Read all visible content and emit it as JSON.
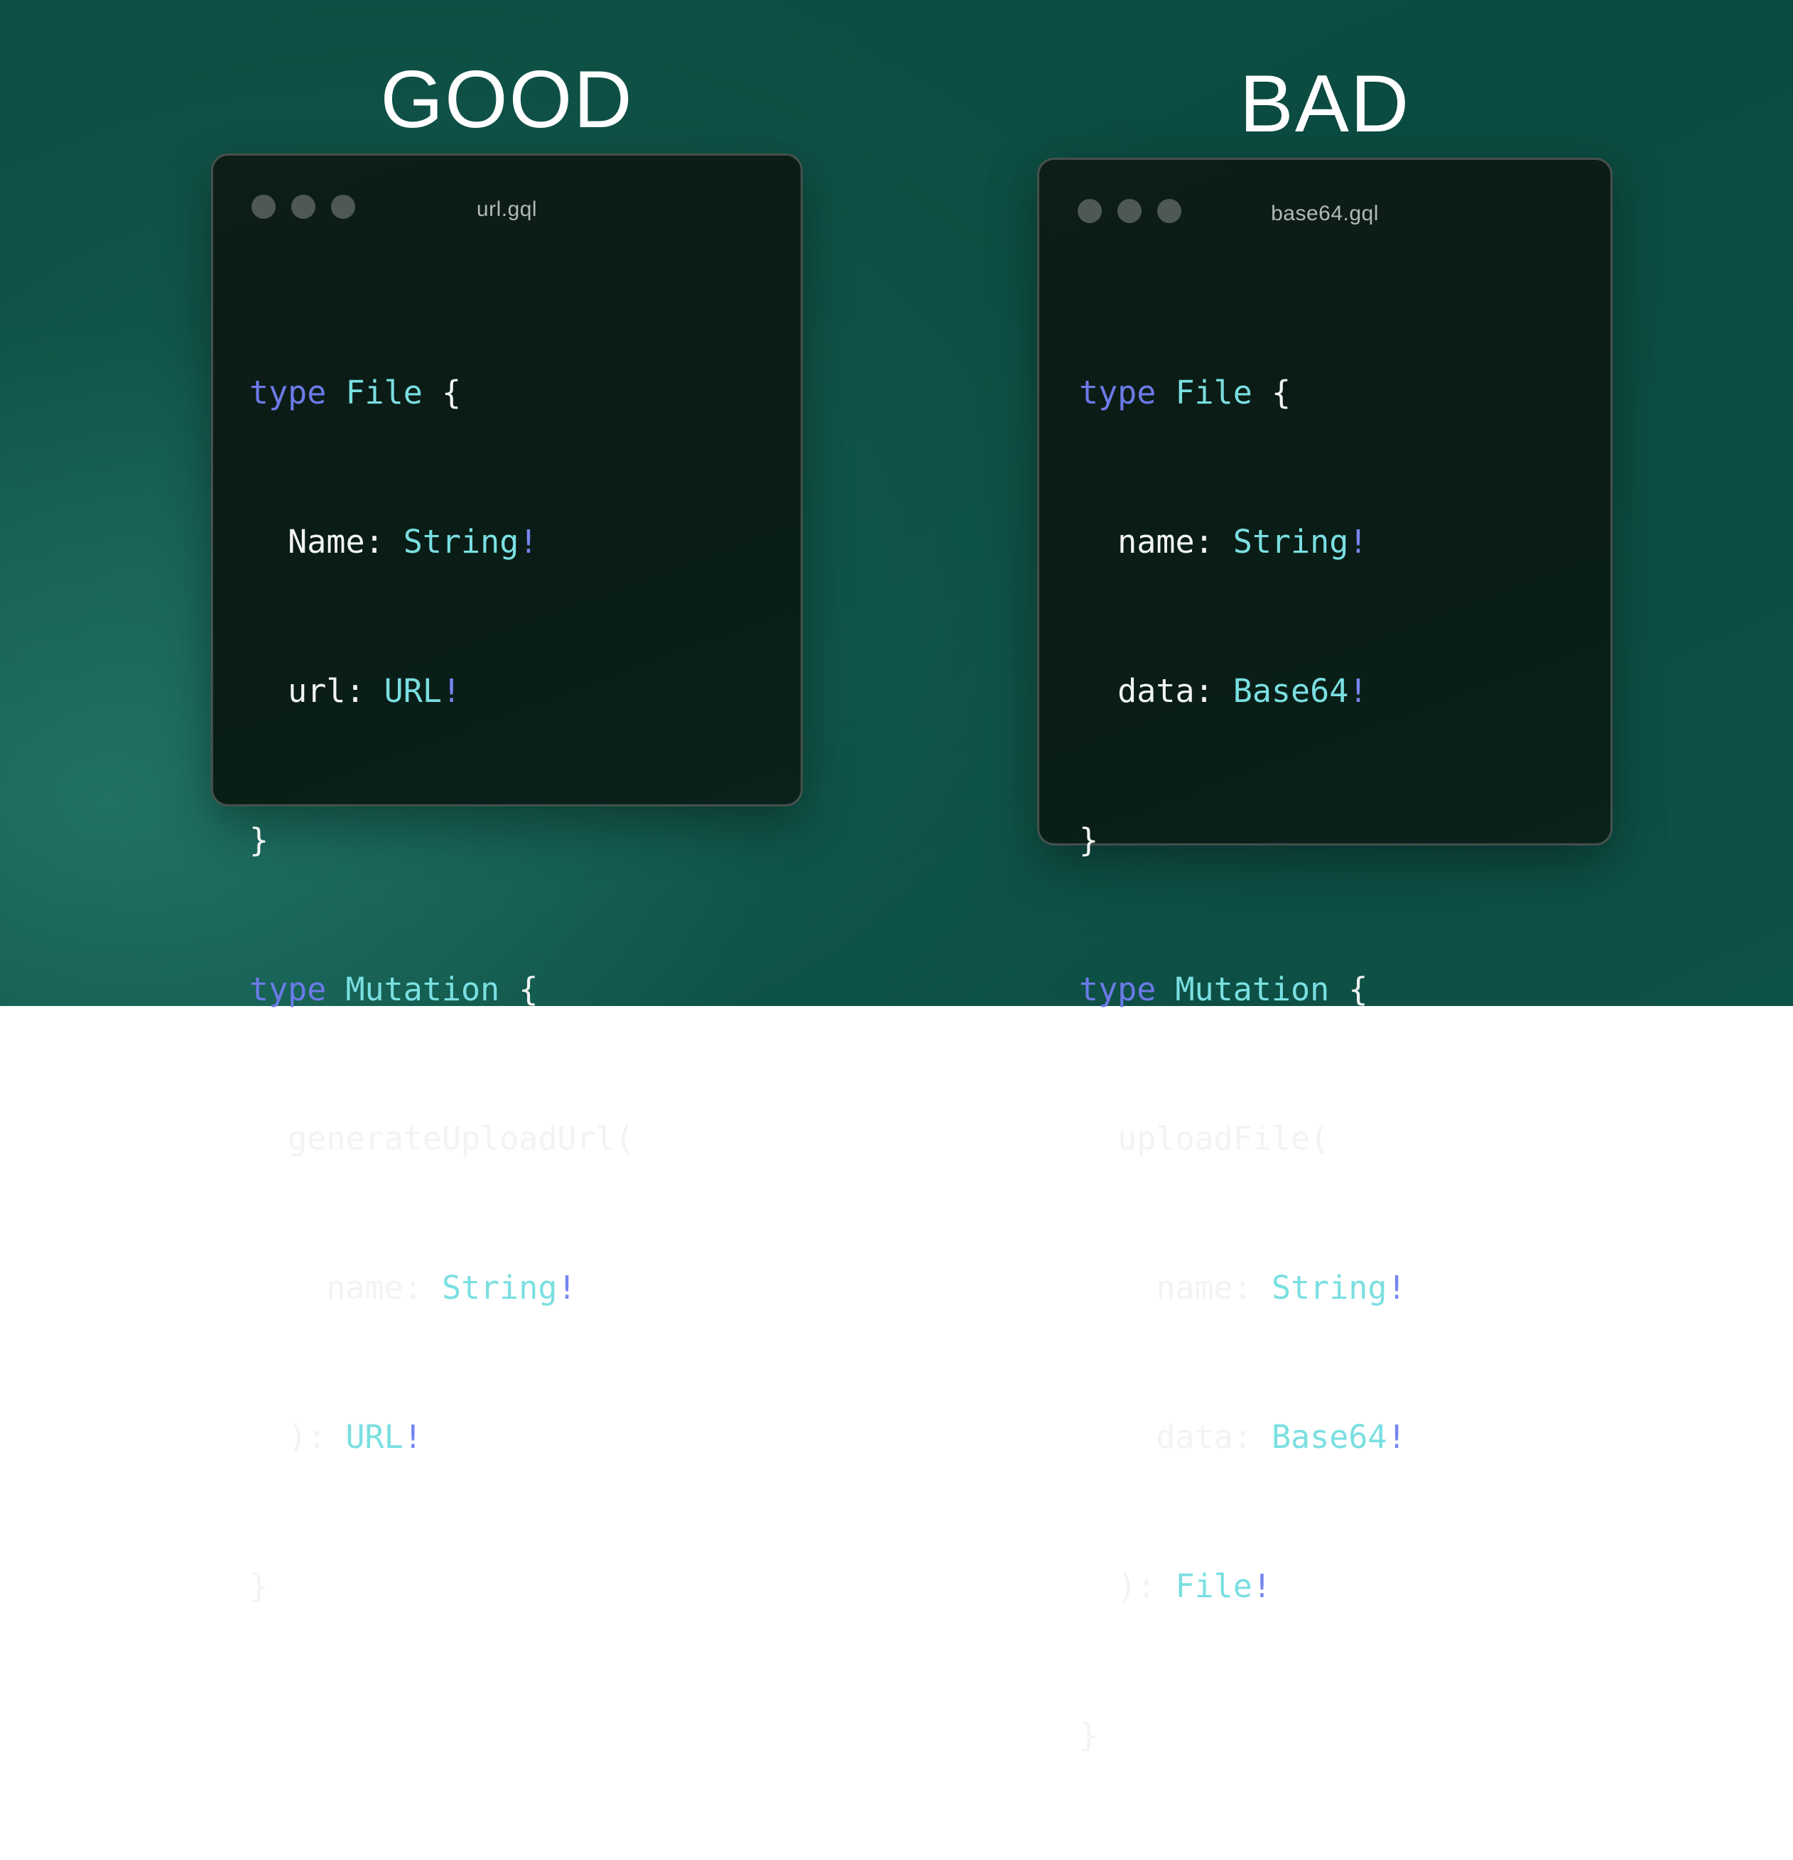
{
  "colors": {
    "background_teal_light": "#17685c",
    "background_teal_dark": "#0c4b41",
    "window_background": "#0c1c17",
    "window_border": "#46514b",
    "traffic_dot": "#4d5952",
    "window_title_text": "#b3b9b7",
    "label_text": "#ffffff",
    "syntax_keyword": "#6c7ae8",
    "syntax_type": "#7adfe1",
    "syntax_bang": "#7685ef",
    "syntax_plain": "#f1f4f3"
  },
  "windows": {
    "good": {
      "label": "GOOD",
      "title": "url.gql",
      "lines": [
        {
          "segs": [
            {
              "c": "kw",
              "t": "type "
            },
            {
              "c": "ty",
              "t": "File "
            },
            {
              "c": "pl",
              "t": "{"
            }
          ]
        },
        {
          "segs": [
            {
              "c": "pl",
              "t": "  Name: "
            },
            {
              "c": "ty",
              "t": "String"
            },
            {
              "c": "bang",
              "t": "!"
            }
          ]
        },
        {
          "segs": [
            {
              "c": "pl",
              "t": "  url: "
            },
            {
              "c": "ty",
              "t": "URL"
            },
            {
              "c": "bang",
              "t": "!"
            }
          ]
        },
        {
          "segs": [
            {
              "c": "pl",
              "t": "}"
            }
          ]
        },
        {
          "segs": [
            {
              "c": "kw",
              "t": "type "
            },
            {
              "c": "ty",
              "t": "Mutation "
            },
            {
              "c": "pl",
              "t": "{"
            }
          ]
        },
        {
          "segs": [
            {
              "c": "pl",
              "t": "  generateUploadUrl("
            }
          ]
        },
        {
          "segs": [
            {
              "c": "pl",
              "t": "    name: "
            },
            {
              "c": "ty",
              "t": "String"
            },
            {
              "c": "bang",
              "t": "!"
            }
          ]
        },
        {
          "segs": [
            {
              "c": "pl",
              "t": "  ): "
            },
            {
              "c": "ty",
              "t": "URL"
            },
            {
              "c": "bang",
              "t": "!"
            }
          ]
        },
        {
          "segs": [
            {
              "c": "pl",
              "t": "}"
            }
          ]
        }
      ]
    },
    "bad": {
      "label": "BAD",
      "title": "base64.gql",
      "lines": [
        {
          "segs": [
            {
              "c": "kw",
              "t": "type "
            },
            {
              "c": "ty",
              "t": "File "
            },
            {
              "c": "pl",
              "t": "{"
            }
          ]
        },
        {
          "segs": [
            {
              "c": "pl",
              "t": "  name: "
            },
            {
              "c": "ty",
              "t": "String"
            },
            {
              "c": "bang",
              "t": "!"
            }
          ]
        },
        {
          "segs": [
            {
              "c": "pl",
              "t": "  data: "
            },
            {
              "c": "ty",
              "t": "Base64"
            },
            {
              "c": "bang",
              "t": "!"
            }
          ]
        },
        {
          "segs": [
            {
              "c": "pl",
              "t": "}"
            }
          ]
        },
        {
          "segs": [
            {
              "c": "kw",
              "t": "type "
            },
            {
              "c": "ty",
              "t": "Mutation "
            },
            {
              "c": "pl",
              "t": "{"
            }
          ]
        },
        {
          "segs": [
            {
              "c": "pl",
              "t": "  uploadFile("
            }
          ]
        },
        {
          "segs": [
            {
              "c": "pl",
              "t": "    name: "
            },
            {
              "c": "ty",
              "t": "String"
            },
            {
              "c": "bang",
              "t": "!"
            }
          ]
        },
        {
          "segs": [
            {
              "c": "pl",
              "t": "    data: "
            },
            {
              "c": "ty",
              "t": "Base64"
            },
            {
              "c": "bang",
              "t": "!"
            }
          ]
        },
        {
          "segs": [
            {
              "c": "pl",
              "t": "  ): "
            },
            {
              "c": "ty",
              "t": "File"
            },
            {
              "c": "bang",
              "t": "!"
            }
          ]
        },
        {
          "segs": [
            {
              "c": "pl",
              "t": "}"
            }
          ]
        }
      ]
    }
  }
}
